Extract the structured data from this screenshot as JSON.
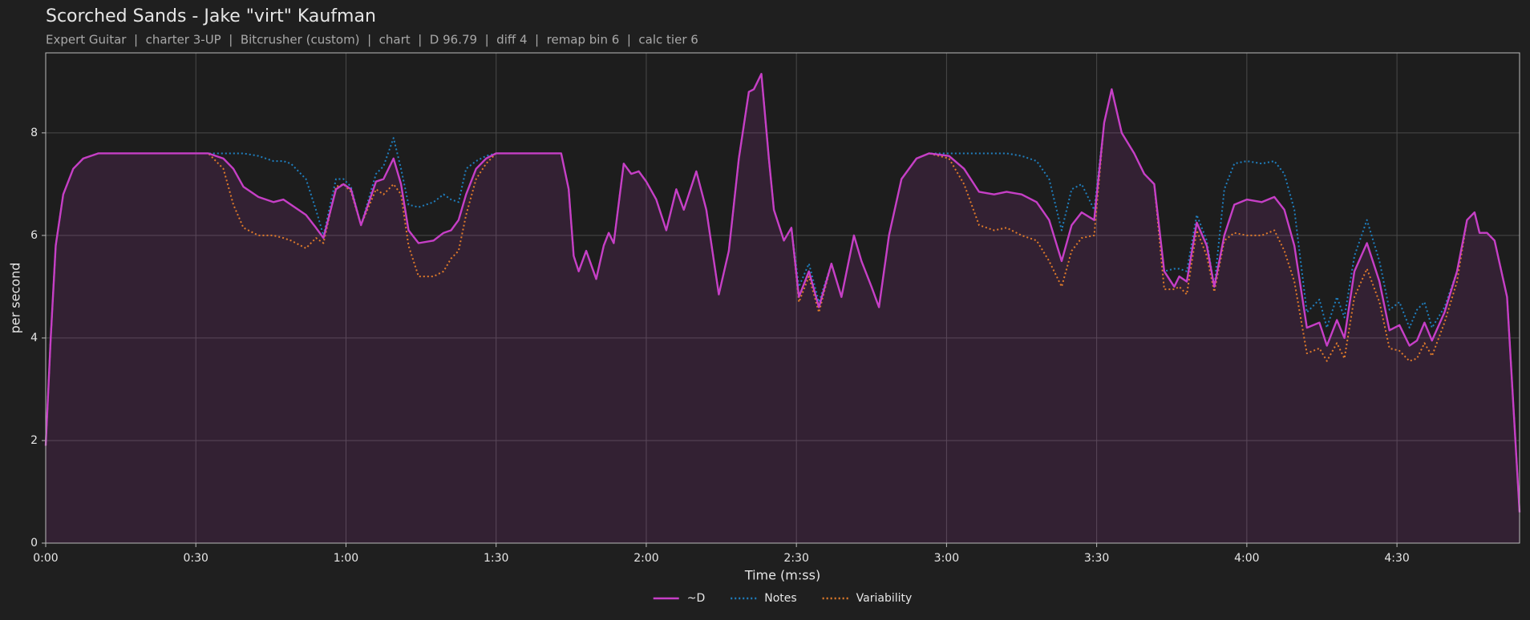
{
  "chart_data": {
    "type": "line",
    "title": "Scorched Sands - Jake \"virt\" Kaufman",
    "subtitle": "Expert Guitar  |  charter 3-UP  |  Bitcrusher (custom)  |  chart  |  D 96.79  |  diff 4  |  remap bin 6  |  calc tier 6",
    "x_label": "Time (m:ss)",
    "y_label": "per second",
    "xlim": [
      0,
      294.5
    ],
    "ylim": [
      0,
      9.56
    ],
    "xticks": [
      {
        "value": 0,
        "label": "0:00"
      },
      {
        "value": 30,
        "label": "0:30"
      },
      {
        "value": 60,
        "label": "1:00"
      },
      {
        "value": 90,
        "label": "1:30"
      },
      {
        "value": 120,
        "label": "2:00"
      },
      {
        "value": 150,
        "label": "2:30"
      },
      {
        "value": 180,
        "label": "3:00"
      },
      {
        "value": 210,
        "label": "3:30"
      },
      {
        "value": 240,
        "label": "4:00"
      },
      {
        "value": 270,
        "label": "4:30"
      }
    ],
    "yticks": [
      0,
      2,
      4,
      6,
      8
    ],
    "grid": true,
    "legend": "bottom",
    "x": [
      0,
      1,
      2,
      3.5,
      5.5,
      7.5,
      10.5,
      20,
      32.5,
      35.5,
      37.5,
      39.5,
      42.5,
      45.5,
      47.5,
      49,
      52,
      54,
      55.5,
      58,
      59.5,
      61,
      63,
      66,
      67.5,
      69.5,
      71,
      72.5,
      74.5,
      77.5,
      79.5,
      81,
      82.5,
      84,
      86,
      88,
      90,
      97,
      103,
      104.5,
      105.5,
      106.5,
      108,
      110,
      111.5,
      112.5,
      113.5,
      115.5,
      117,
      118.5,
      120,
      122,
      124,
      126,
      127.5,
      130,
      132,
      134.5,
      136.5,
      138.5,
      140.5,
      141.5,
      143,
      144.5,
      145.5,
      147.5,
      149,
      150.5,
      152.5,
      154.5,
      157,
      159,
      161.5,
      163,
      165,
      166.5,
      168.5,
      171,
      174,
      176.5,
      180.5,
      183.5,
      186.5,
      189.5,
      192,
      195,
      198,
      200.5,
      203,
      205,
      207,
      209.5,
      211.5,
      213,
      215,
      217.5,
      219.5,
      221.5,
      223.5,
      225.5,
      226.5,
      228,
      230,
      232,
      233.5,
      235.5,
      237.5,
      240,
      243,
      245.5,
      247.5,
      249.5,
      252,
      254.5,
      256,
      258,
      259.5,
      261.5,
      264,
      266.5,
      268.5,
      270.5,
      272.5,
      274,
      275.5,
      277,
      279.5,
      282,
      284,
      285.5,
      286.5,
      288,
      289.5,
      292,
      294.5
    ],
    "series": [
      {
        "name": "~D",
        "color": "#c63fc6",
        "dash": "solid",
        "area": true,
        "values": [
          1.9,
          4.0,
          5.8,
          6.8,
          7.3,
          7.5,
          7.6,
          7.6,
          7.6,
          7.5,
          7.3,
          6.95,
          6.75,
          6.65,
          6.7,
          6.6,
          6.4,
          6.15,
          5.95,
          6.9,
          7.0,
          6.9,
          6.2,
          7.05,
          7.1,
          7.5,
          7.0,
          6.1,
          5.85,
          5.9,
          6.05,
          6.1,
          6.3,
          6.8,
          7.3,
          7.5,
          7.6,
          7.6,
          7.6,
          6.9,
          5.6,
          5.3,
          5.7,
          5.15,
          5.8,
          6.05,
          5.85,
          7.4,
          7.2,
          7.25,
          7.05,
          6.7,
          6.1,
          6.9,
          6.5,
          7.25,
          6.5,
          4.85,
          5.7,
          7.5,
          8.8,
          8.85,
          9.15,
          7.5,
          6.5,
          5.9,
          6.15,
          4.8,
          5.3,
          4.6,
          5.45,
          4.8,
          6.0,
          5.5,
          5.0,
          4.6,
          6.0,
          7.1,
          7.5,
          7.6,
          7.55,
          7.3,
          6.85,
          6.8,
          6.85,
          6.8,
          6.65,
          6.3,
          5.5,
          6.2,
          6.45,
          6.3,
          8.2,
          8.85,
          8.0,
          7.6,
          7.2,
          7.0,
          5.3,
          5.0,
          5.2,
          5.1,
          6.25,
          5.8,
          5.0,
          6.0,
          6.6,
          6.7,
          6.65,
          6.75,
          6.5,
          5.8,
          4.2,
          4.3,
          3.85,
          4.35,
          4.0,
          5.3,
          5.85,
          5.1,
          4.15,
          4.25,
          3.85,
          3.95,
          4.3,
          3.95,
          4.5,
          5.3,
          6.3,
          6.45,
          6.05,
          6.05,
          5.9,
          4.8,
          0.6
        ]
      },
      {
        "name": "Notes",
        "color": "#1f7fbf",
        "dash": "dotted",
        "values": [
          1.9,
          4.0,
          5.8,
          6.8,
          7.3,
          7.5,
          7.6,
          7.6,
          7.6,
          7.6,
          7.6,
          7.6,
          7.55,
          7.45,
          7.45,
          7.4,
          7.1,
          6.5,
          6.0,
          7.1,
          7.1,
          6.95,
          6.2,
          7.2,
          7.35,
          7.9,
          7.3,
          6.6,
          6.55,
          6.65,
          6.8,
          6.7,
          6.65,
          7.3,
          7.45,
          7.55,
          7.6,
          7.6,
          7.6,
          6.9,
          5.6,
          5.3,
          5.7,
          5.15,
          5.8,
          6.05,
          5.85,
          7.4,
          7.2,
          7.25,
          7.05,
          6.7,
          6.1,
          6.9,
          6.5,
          7.25,
          6.5,
          4.85,
          5.7,
          7.5,
          8.8,
          8.85,
          9.15,
          7.5,
          6.5,
          5.9,
          6.15,
          5.0,
          5.45,
          4.7,
          5.45,
          4.8,
          6.0,
          5.5,
          5.0,
          4.6,
          6.0,
          7.1,
          7.5,
          7.6,
          7.6,
          7.6,
          7.6,
          7.6,
          7.6,
          7.55,
          7.45,
          7.1,
          6.1,
          6.9,
          7.0,
          6.5,
          8.2,
          8.85,
          8.0,
          7.6,
          7.2,
          7.0,
          5.3,
          5.35,
          5.35,
          5.3,
          6.4,
          5.9,
          5.0,
          6.9,
          7.4,
          7.45,
          7.4,
          7.45,
          7.2,
          6.5,
          4.5,
          4.75,
          4.2,
          4.8,
          4.4,
          5.6,
          6.3,
          5.5,
          4.55,
          4.7,
          4.2,
          4.55,
          4.7,
          4.2,
          4.6,
          5.3,
          6.3,
          6.45,
          6.05,
          6.05,
          5.9,
          4.8,
          0.6
        ]
      },
      {
        "name": "Variability",
        "color": "#e07b2a",
        "dash": "dotted",
        "values": [
          1.9,
          4.0,
          5.8,
          6.8,
          7.3,
          7.5,
          7.6,
          7.6,
          7.6,
          7.3,
          6.6,
          6.15,
          6.0,
          6.0,
          5.95,
          5.9,
          5.75,
          5.95,
          5.85,
          6.95,
          7.0,
          6.85,
          6.2,
          6.9,
          6.8,
          7.0,
          6.8,
          5.8,
          5.2,
          5.2,
          5.3,
          5.55,
          5.7,
          6.4,
          7.1,
          7.4,
          7.6,
          7.6,
          7.6,
          6.9,
          5.6,
          5.3,
          5.7,
          5.15,
          5.8,
          6.05,
          5.85,
          7.4,
          7.2,
          7.25,
          7.05,
          6.7,
          6.1,
          6.9,
          6.5,
          7.25,
          6.5,
          4.85,
          5.7,
          7.5,
          8.8,
          8.85,
          9.15,
          7.5,
          6.5,
          5.9,
          6.15,
          4.7,
          5.2,
          4.5,
          5.45,
          4.8,
          6.0,
          5.5,
          5.0,
          4.6,
          6.0,
          7.1,
          7.5,
          7.6,
          7.5,
          7.0,
          6.2,
          6.1,
          6.15,
          6.0,
          5.9,
          5.5,
          5.0,
          5.7,
          5.95,
          6.0,
          8.2,
          8.85,
          8.0,
          7.6,
          7.2,
          7.0,
          4.95,
          4.95,
          5.0,
          4.85,
          6.1,
          5.6,
          4.9,
          5.9,
          6.05,
          6.0,
          6.0,
          6.1,
          5.7,
          5.1,
          3.7,
          3.8,
          3.55,
          3.9,
          3.6,
          4.8,
          5.35,
          4.7,
          3.8,
          3.75,
          3.55,
          3.6,
          3.9,
          3.65,
          4.3,
          5.1,
          6.3,
          6.45,
          6.05,
          6.05,
          5.9,
          4.8,
          0.6
        ]
      }
    ]
  }
}
